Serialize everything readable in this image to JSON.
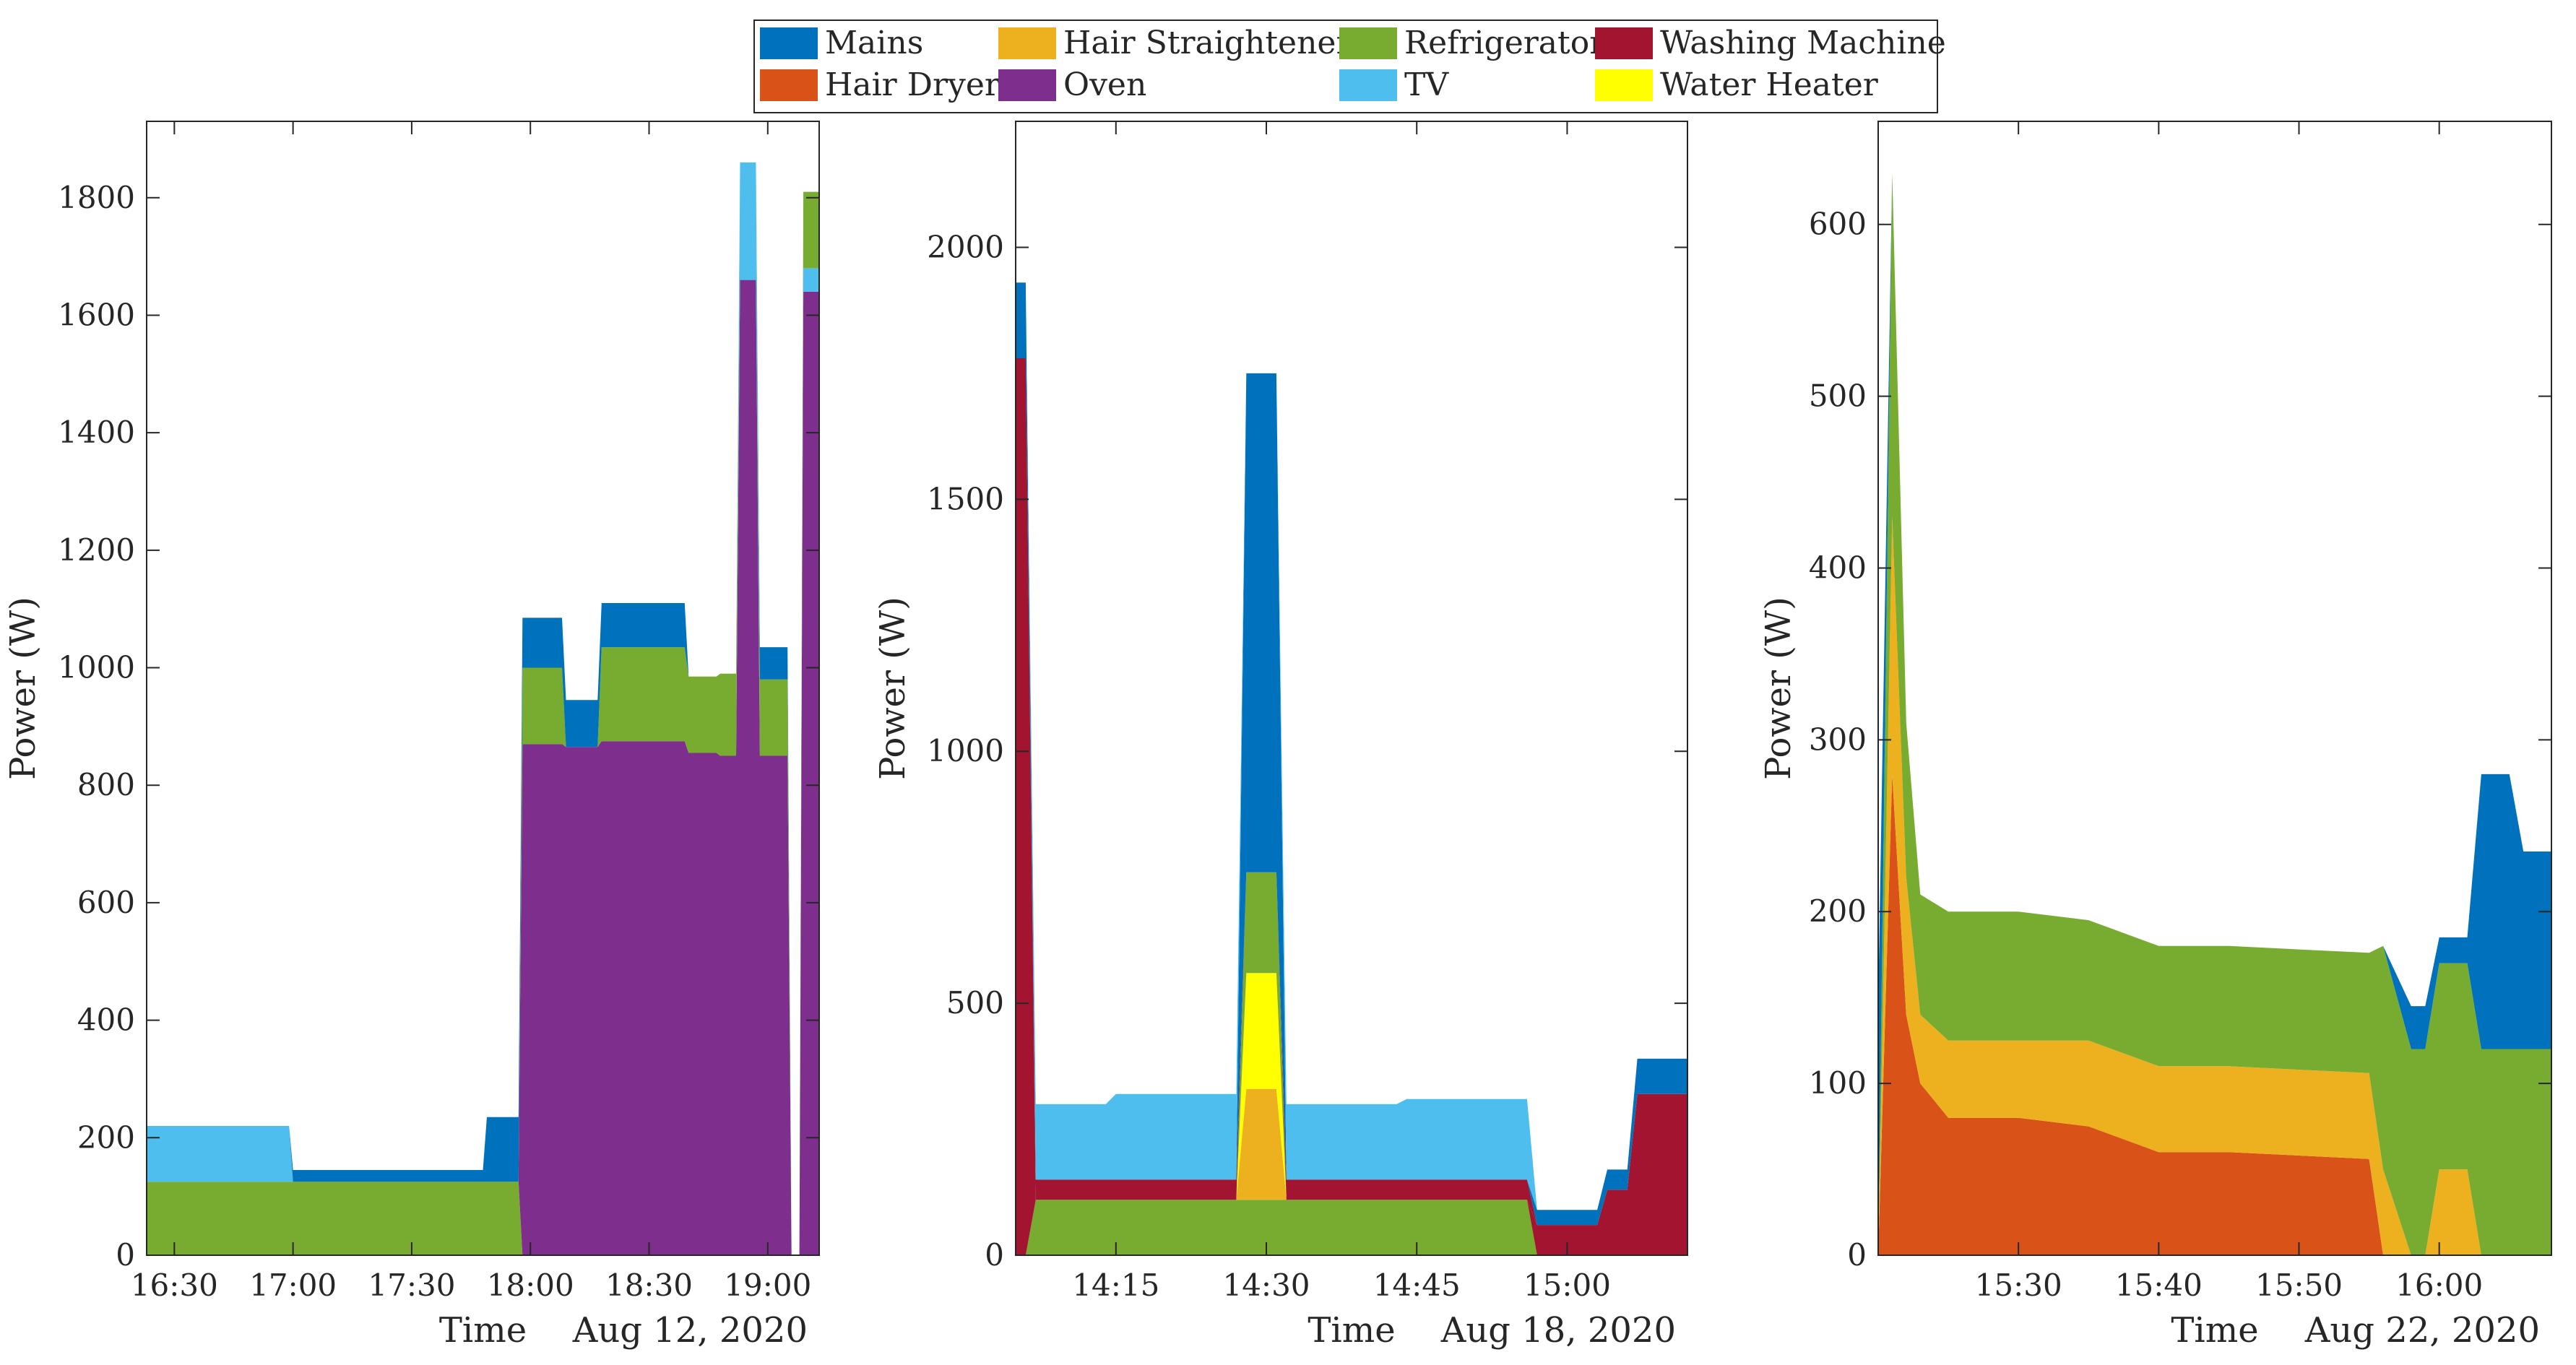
{
  "chart_data": [
    {
      "type": "area",
      "stacked": true,
      "panel": "left",
      "xlabel": "Time",
      "date_label": "Aug 12, 2020",
      "ylabel": "Power (W)",
      "xlim": [
        "16:23",
        "19:13"
      ],
      "ylim": [
        0,
        1930
      ],
      "xticks": [
        "16:30",
        "17:00",
        "17:30",
        "18:00",
        "18:30",
        "19:00"
      ],
      "yticks": [
        0,
        200,
        400,
        600,
        800,
        1000,
        1200,
        1400,
        1600,
        1800
      ],
      "grid": false,
      "x": [
        "16:23",
        "16:59",
        "17:00",
        "17:48",
        "17:49",
        "17:57",
        "17:58",
        "18:08",
        "18:09",
        "18:17",
        "18:18",
        "18:39",
        "18:40",
        "18:47",
        "18:48",
        "18:52",
        "18:53",
        "18:57",
        "18:58",
        "19:05",
        "19:06",
        "19:08",
        "19:09",
        "19:13"
      ],
      "series": [
        {
          "name": "Refrigerator",
          "color": "#77AC30",
          "values": [
            125,
            125,
            125,
            125,
            125,
            125,
            0,
            0,
            0,
            0,
            0,
            0,
            0,
            0,
            0,
            0,
            0,
            0,
            0,
            0,
            0,
            0,
            0,
            0
          ]
        },
        {
          "name": "Oven",
          "color": "#7E2F8E",
          "values": [
            0,
            0,
            0,
            0,
            0,
            0,
            870,
            870,
            865,
            865,
            875,
            875,
            855,
            855,
            850,
            850,
            1660,
            1660,
            850,
            850,
            0,
            0,
            1640,
            1640
          ]
        },
        {
          "name": "TV",
          "color": "#4DBEEE",
          "values": [
            95,
            95,
            0,
            0,
            0,
            0,
            0,
            0,
            0,
            0,
            0,
            0,
            0,
            0,
            0,
            0,
            200,
            200,
            0,
            0,
            0,
            0,
            40,
            40
          ]
        },
        {
          "name": "Refrigerator",
          "color": "#77AC30",
          "values": [
            0,
            0,
            0,
            0,
            0,
            0,
            130,
            130,
            0,
            0,
            160,
            160,
            130,
            130,
            140,
            140,
            0,
            0,
            130,
            130,
            0,
            0,
            130,
            130
          ]
        },
        {
          "name": "Mains",
          "color": "#0072BD",
          "values": [
            0,
            0,
            20,
            20,
            110,
            110,
            85,
            85,
            80,
            80,
            75,
            75,
            0,
            0,
            0,
            0,
            0,
            0,
            55,
            55,
            0,
            0,
            0,
            0
          ]
        }
      ]
    },
    {
      "type": "area",
      "stacked": true,
      "panel": "middle",
      "xlabel": "Time",
      "date_label": "Aug 18, 2020",
      "ylabel": "Power (W)",
      "xlim": [
        "14:05",
        "15:12"
      ],
      "ylim": [
        0,
        2250
      ],
      "xticks": [
        "14:15",
        "14:30",
        "14:45",
        "15:00"
      ],
      "yticks": [
        0,
        500,
        1000,
        1500,
        2000
      ],
      "grid": false,
      "x": [
        "14:05",
        "14:06",
        "14:07",
        "14:14",
        "14:15",
        "14:27",
        "14:28",
        "14:31",
        "14:32",
        "14:43",
        "14:44",
        "14:56",
        "14:57",
        "15:03",
        "15:04",
        "15:06",
        "15:07",
        "15:12"
      ],
      "series": [
        {
          "name": "Refrigerator",
          "color": "#77AC30",
          "values": [
            0,
            0,
            110,
            110,
            110,
            110,
            110,
            110,
            110,
            110,
            110,
            110,
            0,
            0,
            0,
            0,
            0,
            0
          ]
        },
        {
          "name": "Washing Machine",
          "color": "#A2142F",
          "values": [
            1780,
            1780,
            0,
            0,
            0,
            0,
            0,
            0,
            0,
            0,
            0,
            0,
            60,
            60,
            130,
            130,
            320,
            320
          ]
        },
        {
          "name": "Hair Straightener",
          "color": "#EDB120",
          "values": [
            0,
            0,
            0,
            0,
            0,
            0,
            220,
            220,
            0,
            0,
            0,
            0,
            0,
            0,
            0,
            0,
            0,
            0
          ]
        },
        {
          "name": "Water Heater",
          "color": "#FFFF00",
          "values": [
            0,
            0,
            0,
            0,
            0,
            0,
            230,
            230,
            0,
            0,
            0,
            0,
            0,
            0,
            0,
            0,
            0,
            0
          ]
        },
        {
          "name": "Refrigerator",
          "color": "#77AC30",
          "values": [
            0,
            0,
            0,
            0,
            0,
            0,
            200,
            200,
            0,
            0,
            0,
            0,
            0,
            0,
            0,
            0,
            0,
            0
          ]
        },
        {
          "name": "Washing Machine",
          "color": "#A2142F",
          "values": [
            0,
            0,
            40,
            40,
            40,
            40,
            0,
            0,
            40,
            40,
            40,
            40,
            0,
            0,
            0,
            0,
            0,
            0
          ]
        },
        {
          "name": "Mains",
          "color": "#0072BD",
          "values": [
            150,
            150,
            0,
            0,
            0,
            0,
            990,
            990,
            0,
            0,
            0,
            0,
            30,
            30,
            40,
            40,
            70,
            70
          ]
        },
        {
          "name": "TV",
          "color": "#4DBEEE",
          "values": [
            0,
            0,
            150,
            150,
            170,
            170,
            0,
            0,
            150,
            150,
            160,
            160,
            0,
            0,
            0,
            0,
            0,
            0
          ]
        }
      ]
    },
    {
      "type": "area",
      "stacked": true,
      "panel": "right",
      "xlabel": "Time",
      "date_label": "Aug 22, 2020",
      "ylabel": "Power (W)",
      "xlim": [
        "15:20",
        "16:08"
      ],
      "ylim": [
        0,
        660
      ],
      "xticks": [
        "15:30",
        "15:40",
        "15:50",
        "16:00"
      ],
      "yticks": [
        0,
        100,
        200,
        300,
        400,
        500,
        600
      ],
      "grid": false,
      "x": [
        "15:20",
        "15:21",
        "15:22",
        "15:23",
        "15:25",
        "15:30",
        "15:35",
        "15:40",
        "15:45",
        "15:50",
        "15:55",
        "15:56",
        "15:58",
        "15:59",
        "16:00",
        "16:02",
        "16:03",
        "16:05",
        "16:06",
        "16:08"
      ],
      "series": [
        {
          "name": "Hair Dryer",
          "color": "#D95319",
          "values": [
            0,
            280,
            140,
            100,
            80,
            80,
            75,
            60,
            60,
            58,
            56,
            0,
            0,
            0,
            0,
            0,
            0,
            0,
            0,
            0
          ]
        },
        {
          "name": "Hair Straightener",
          "color": "#EDB120",
          "values": [
            0,
            150,
            80,
            40,
            45,
            45,
            50,
            50,
            50,
            50,
            50,
            50,
            0,
            0,
            50,
            50,
            0,
            0,
            0,
            0
          ]
        },
        {
          "name": "Refrigerator",
          "color": "#77AC30",
          "values": [
            0,
            200,
            90,
            70,
            75,
            75,
            70,
            70,
            70,
            70,
            70,
            130,
            120,
            120,
            120,
            120,
            120,
            120,
            120,
            120
          ]
        },
        {
          "name": "Mains",
          "color": "#0072BD",
          "values": [
            145,
            0,
            0,
            0,
            0,
            0,
            0,
            0,
            0,
            0,
            0,
            0,
            25,
            25,
            15,
            15,
            160,
            160,
            115,
            115
          ]
        }
      ]
    }
  ],
  "legend": {
    "placement": "top-center",
    "entries": [
      {
        "name": "Mains",
        "color": "#0072BD"
      },
      {
        "name": "Hair Straightener",
        "color": "#EDB120"
      },
      {
        "name": "Refrigerator",
        "color": "#77AC30"
      },
      {
        "name": "Washing Machine",
        "color": "#A2142F"
      },
      {
        "name": "Hair Dryer",
        "color": "#D95319"
      },
      {
        "name": "Oven",
        "color": "#7E2F8E"
      },
      {
        "name": "TV",
        "color": "#4DBEEE"
      },
      {
        "name": "Water Heater",
        "color": "#FFFF00"
      }
    ]
  }
}
